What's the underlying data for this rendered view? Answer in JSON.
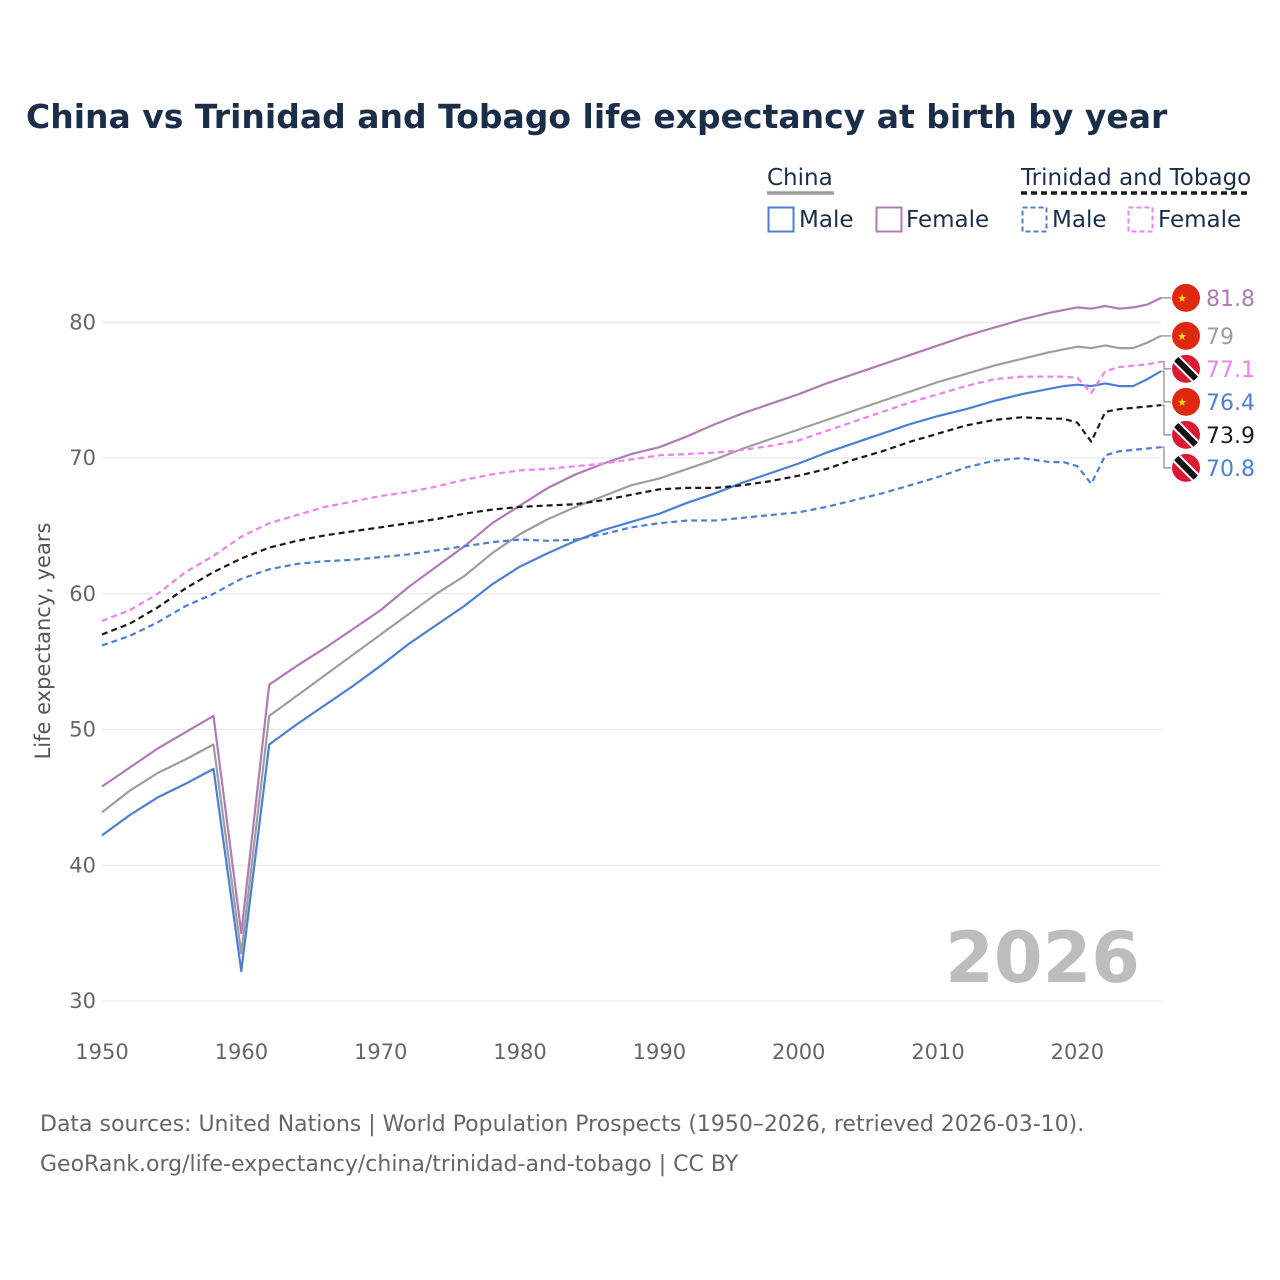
{
  "chart_data": {
    "type": "line",
    "title": "China vs Trinidad and Tobago life expectancy at birth by year",
    "ylabel": "Life expectancy, years",
    "xlabel": "",
    "xlim": [
      1950,
      2026
    ],
    "ylim": [
      30,
      84
    ],
    "x_ticks": [
      1950,
      1960,
      1970,
      1980,
      1990,
      2000,
      2010,
      2020
    ],
    "y_ticks": [
      30,
      40,
      50,
      60,
      70,
      80
    ],
    "grid": "horizontal",
    "year_watermark": "2026",
    "legend": {
      "placement": "top-right",
      "groups": [
        {
          "label": "China",
          "style": "solid",
          "items": [
            {
              "label": "Male",
              "color": "#4a7fd4"
            },
            {
              "label": "Female",
              "color": "#b07ab5"
            }
          ]
        },
        {
          "label": "Trinidad and Tobago",
          "style": "dashed",
          "items": [
            {
              "label": "Male",
              "color": "#4a7fd4"
            },
            {
              "label": "Female",
              "color": "#f07ff0"
            }
          ]
        }
      ]
    },
    "series": [
      {
        "name": "China Female",
        "country": "China",
        "color": "#b07ab5",
        "dash": false,
        "end_label": "81.8",
        "points": [
          [
            1950,
            45.8
          ],
          [
            1952,
            47.2
          ],
          [
            1954,
            48.6
          ],
          [
            1956,
            49.8
          ],
          [
            1958,
            51.0
          ],
          [
            1960,
            35.0
          ],
          [
            1962,
            53.3
          ],
          [
            1964,
            54.7
          ],
          [
            1966,
            56.0
          ],
          [
            1968,
            57.4
          ],
          [
            1970,
            58.8
          ],
          [
            1972,
            60.5
          ],
          [
            1974,
            62.0
          ],
          [
            1976,
            63.5
          ],
          [
            1978,
            65.2
          ],
          [
            1980,
            66.5
          ],
          [
            1982,
            67.8
          ],
          [
            1984,
            68.8
          ],
          [
            1986,
            69.6
          ],
          [
            1988,
            70.3
          ],
          [
            1990,
            70.8
          ],
          [
            1992,
            71.6
          ],
          [
            1994,
            72.5
          ],
          [
            1996,
            73.3
          ],
          [
            1998,
            74.0
          ],
          [
            2000,
            74.7
          ],
          [
            2002,
            75.5
          ],
          [
            2004,
            76.2
          ],
          [
            2006,
            76.9
          ],
          [
            2008,
            77.6
          ],
          [
            2010,
            78.3
          ],
          [
            2012,
            79.0
          ],
          [
            2014,
            79.6
          ],
          [
            2016,
            80.2
          ],
          [
            2018,
            80.7
          ],
          [
            2019,
            80.9
          ],
          [
            2020,
            81.1
          ],
          [
            2021,
            81.0
          ],
          [
            2022,
            81.2
          ],
          [
            2023,
            81.0
          ],
          [
            2024,
            81.1
          ],
          [
            2025,
            81.3
          ],
          [
            2026,
            81.8
          ]
        ]
      },
      {
        "name": "China Total",
        "country": "China",
        "color": "#9e9e9e",
        "dash": false,
        "end_label": "79",
        "points": [
          [
            1950,
            43.9
          ],
          [
            1952,
            45.5
          ],
          [
            1954,
            46.8
          ],
          [
            1956,
            47.8
          ],
          [
            1958,
            48.9
          ],
          [
            1960,
            33.5
          ],
          [
            1962,
            51.0
          ],
          [
            1964,
            52.5
          ],
          [
            1966,
            54.0
          ],
          [
            1968,
            55.5
          ],
          [
            1970,
            57.0
          ],
          [
            1972,
            58.5
          ],
          [
            1974,
            60.0
          ],
          [
            1976,
            61.3
          ],
          [
            1978,
            63.0
          ],
          [
            1980,
            64.4
          ],
          [
            1982,
            65.5
          ],
          [
            1984,
            66.4
          ],
          [
            1986,
            67.2
          ],
          [
            1988,
            68.0
          ],
          [
            1990,
            68.5
          ],
          [
            1992,
            69.2
          ],
          [
            1994,
            69.9
          ],
          [
            1996,
            70.7
          ],
          [
            1998,
            71.4
          ],
          [
            2000,
            72.1
          ],
          [
            2002,
            72.8
          ],
          [
            2004,
            73.5
          ],
          [
            2006,
            74.2
          ],
          [
            2008,
            74.9
          ],
          [
            2010,
            75.6
          ],
          [
            2012,
            76.2
          ],
          [
            2014,
            76.8
          ],
          [
            2016,
            77.3
          ],
          [
            2018,
            77.8
          ],
          [
            2019,
            78.0
          ],
          [
            2020,
            78.2
          ],
          [
            2021,
            78.1
          ],
          [
            2022,
            78.3
          ],
          [
            2023,
            78.1
          ],
          [
            2024,
            78.1
          ],
          [
            2025,
            78.5
          ],
          [
            2026,
            79.0
          ]
        ]
      },
      {
        "name": "China Male",
        "country": "China",
        "color": "#4a7fd4",
        "dash": false,
        "end_label": "76.4",
        "points": [
          [
            1950,
            42.2
          ],
          [
            1952,
            43.7
          ],
          [
            1954,
            45.0
          ],
          [
            1956,
            46.0
          ],
          [
            1958,
            47.1
          ],
          [
            1960,
            32.2
          ],
          [
            1962,
            48.9
          ],
          [
            1964,
            50.4
          ],
          [
            1966,
            51.8
          ],
          [
            1968,
            53.2
          ],
          [
            1970,
            54.7
          ],
          [
            1972,
            56.3
          ],
          [
            1974,
            57.7
          ],
          [
            1976,
            59.1
          ],
          [
            1978,
            60.7
          ],
          [
            1980,
            62.0
          ],
          [
            1982,
            63.0
          ],
          [
            1984,
            63.9
          ],
          [
            1986,
            64.7
          ],
          [
            1988,
            65.3
          ],
          [
            1990,
            65.9
          ],
          [
            1992,
            66.7
          ],
          [
            1994,
            67.4
          ],
          [
            1996,
            68.2
          ],
          [
            1998,
            68.9
          ],
          [
            2000,
            69.6
          ],
          [
            2002,
            70.4
          ],
          [
            2004,
            71.1
          ],
          [
            2006,
            71.8
          ],
          [
            2008,
            72.5
          ],
          [
            2010,
            73.1
          ],
          [
            2012,
            73.6
          ],
          [
            2014,
            74.2
          ],
          [
            2016,
            74.7
          ],
          [
            2018,
            75.1
          ],
          [
            2019,
            75.3
          ],
          [
            2020,
            75.4
          ],
          [
            2021,
            75.3
          ],
          [
            2022,
            75.5
          ],
          [
            2023,
            75.3
          ],
          [
            2024,
            75.3
          ],
          [
            2025,
            75.8
          ],
          [
            2026,
            76.4
          ]
        ]
      },
      {
        "name": "Trinidad and Tobago Female",
        "country": "Trinidad and Tobago",
        "color": "#f07ff0",
        "dash": true,
        "end_label": "77.1",
        "points": [
          [
            1950,
            58.0
          ],
          [
            1952,
            58.8
          ],
          [
            1954,
            60.0
          ],
          [
            1956,
            61.6
          ],
          [
            1958,
            62.8
          ],
          [
            1960,
            64.2
          ],
          [
            1962,
            65.2
          ],
          [
            1964,
            65.8
          ],
          [
            1966,
            66.4
          ],
          [
            1968,
            66.8
          ],
          [
            1970,
            67.2
          ],
          [
            1972,
            67.5
          ],
          [
            1974,
            67.9
          ],
          [
            1976,
            68.4
          ],
          [
            1978,
            68.8
          ],
          [
            1980,
            69.1
          ],
          [
            1982,
            69.2
          ],
          [
            1984,
            69.4
          ],
          [
            1986,
            69.6
          ],
          [
            1988,
            69.9
          ],
          [
            1990,
            70.2
          ],
          [
            1992,
            70.3
          ],
          [
            1994,
            70.4
          ],
          [
            1996,
            70.6
          ],
          [
            1998,
            70.9
          ],
          [
            2000,
            71.3
          ],
          [
            2002,
            72.0
          ],
          [
            2004,
            72.7
          ],
          [
            2006,
            73.4
          ],
          [
            2008,
            74.1
          ],
          [
            2010,
            74.7
          ],
          [
            2012,
            75.3
          ],
          [
            2014,
            75.8
          ],
          [
            2016,
            76.0
          ],
          [
            2018,
            76.0
          ],
          [
            2019,
            76.0
          ],
          [
            2020,
            75.9
          ],
          [
            2021,
            74.8
          ],
          [
            2022,
            76.4
          ],
          [
            2023,
            76.7
          ],
          [
            2024,
            76.8
          ],
          [
            2025,
            76.9
          ],
          [
            2026,
            77.1
          ]
        ]
      },
      {
        "name": "Trinidad and Tobago Total",
        "country": "Trinidad and Tobago",
        "color": "#1a1a1a",
        "dash": true,
        "end_label": "73.9",
        "points": [
          [
            1950,
            57.0
          ],
          [
            1952,
            57.8
          ],
          [
            1954,
            59.0
          ],
          [
            1956,
            60.4
          ],
          [
            1958,
            61.6
          ],
          [
            1960,
            62.6
          ],
          [
            1962,
            63.4
          ],
          [
            1964,
            63.9
          ],
          [
            1966,
            64.3
          ],
          [
            1968,
            64.6
          ],
          [
            1970,
            64.9
          ],
          [
            1972,
            65.2
          ],
          [
            1974,
            65.5
          ],
          [
            1976,
            65.9
          ],
          [
            1978,
            66.2
          ],
          [
            1980,
            66.4
          ],
          [
            1982,
            66.5
          ],
          [
            1984,
            66.6
          ],
          [
            1986,
            66.9
          ],
          [
            1988,
            67.3
          ],
          [
            1990,
            67.7
          ],
          [
            1992,
            67.8
          ],
          [
            1994,
            67.8
          ],
          [
            1996,
            68.0
          ],
          [
            1998,
            68.3
          ],
          [
            2000,
            68.7
          ],
          [
            2002,
            69.2
          ],
          [
            2004,
            69.9
          ],
          [
            2006,
            70.5
          ],
          [
            2008,
            71.2
          ],
          [
            2010,
            71.8
          ],
          [
            2012,
            72.4
          ],
          [
            2014,
            72.8
          ],
          [
            2016,
            73.0
          ],
          [
            2018,
            72.9
          ],
          [
            2019,
            72.9
          ],
          [
            2020,
            72.6
          ],
          [
            2021,
            71.2
          ],
          [
            2022,
            73.4
          ],
          [
            2023,
            73.6
          ],
          [
            2024,
            73.7
          ],
          [
            2025,
            73.8
          ],
          [
            2026,
            73.9
          ]
        ]
      },
      {
        "name": "Trinidad and Tobago Male",
        "country": "Trinidad and Tobago",
        "color": "#4a7fd4",
        "dash": true,
        "end_label": "70.8",
        "points": [
          [
            1950,
            56.2
          ],
          [
            1952,
            56.9
          ],
          [
            1954,
            57.9
          ],
          [
            1956,
            59.1
          ],
          [
            1958,
            60.0
          ],
          [
            1960,
            61.1
          ],
          [
            1962,
            61.8
          ],
          [
            1964,
            62.2
          ],
          [
            1966,
            62.4
          ],
          [
            1968,
            62.5
          ],
          [
            1970,
            62.7
          ],
          [
            1972,
            62.9
          ],
          [
            1974,
            63.2
          ],
          [
            1976,
            63.5
          ],
          [
            1978,
            63.8
          ],
          [
            1980,
            64.0
          ],
          [
            1982,
            63.9
          ],
          [
            1984,
            64.0
          ],
          [
            1986,
            64.4
          ],
          [
            1988,
            64.9
          ],
          [
            1990,
            65.2
          ],
          [
            1992,
            65.4
          ],
          [
            1994,
            65.4
          ],
          [
            1996,
            65.6
          ],
          [
            1998,
            65.8
          ],
          [
            2000,
            66.0
          ],
          [
            2002,
            66.4
          ],
          [
            2004,
            66.9
          ],
          [
            2006,
            67.4
          ],
          [
            2008,
            68.0
          ],
          [
            2010,
            68.6
          ],
          [
            2012,
            69.3
          ],
          [
            2014,
            69.8
          ],
          [
            2016,
            70.0
          ],
          [
            2018,
            69.7
          ],
          [
            2019,
            69.7
          ],
          [
            2020,
            69.4
          ],
          [
            2021,
            68.1
          ],
          [
            2022,
            70.2
          ],
          [
            2023,
            70.5
          ],
          [
            2024,
            70.6
          ],
          [
            2025,
            70.7
          ],
          [
            2026,
            70.8
          ]
        ]
      }
    ]
  },
  "source": {
    "line1": "Data sources: United Nations | World Population Prospects (1950–2026, retrieved 2026-03-10).",
    "line2": "GeoRank.org/life-expectancy/china/trinidad-and-tobago | CC BY"
  },
  "colors": {
    "title": "#1a2e4a",
    "china_flag": "#de2910",
    "tt_flag_red": "#da1a35",
    "grid": "#e6e6e6"
  }
}
